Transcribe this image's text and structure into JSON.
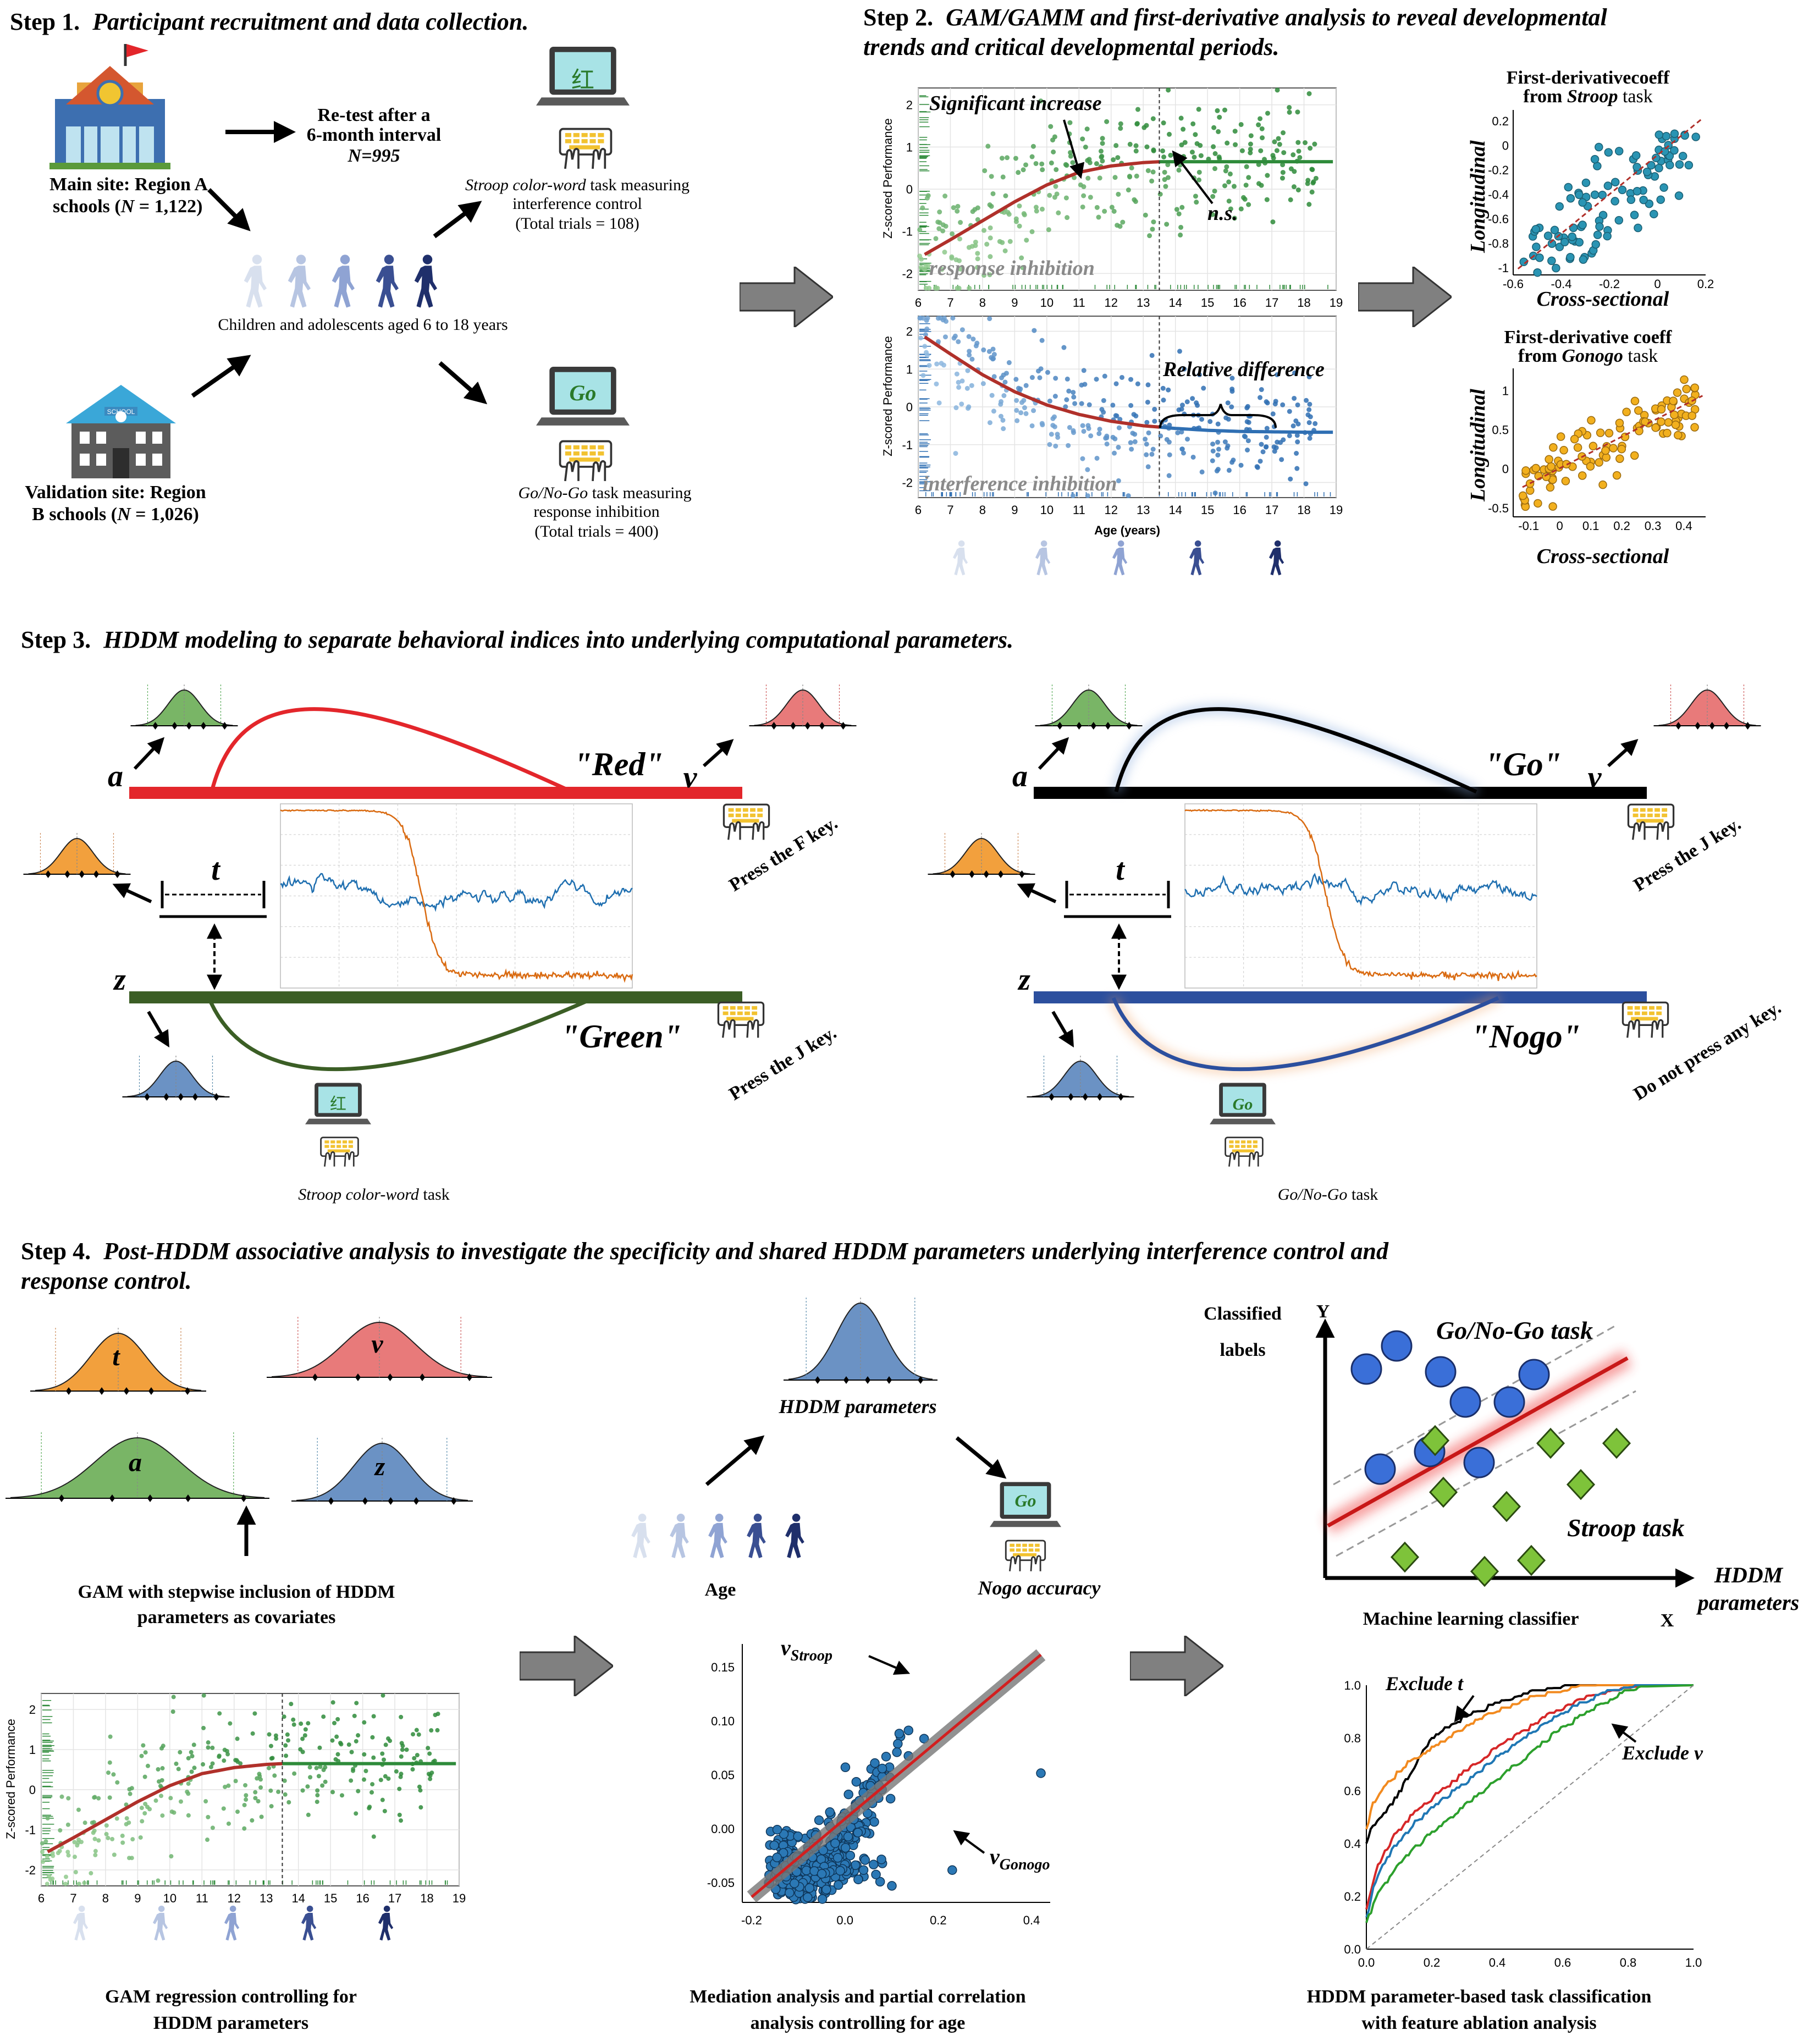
{
  "colors": {
    "green": "#2e8b3a",
    "light_green": "#9fd39a",
    "blue": "#2f6fb3",
    "light_blue": "#9cc3e6",
    "red": "#e3262b",
    "dark_red": "#b0302a",
    "orange": "#f2a03d",
    "olive": "#3b5e25",
    "navy": "#2c4f9e",
    "teal": "#2a94b3",
    "gold": "#f2b01e",
    "lime": "#7ec33a",
    "arrow_gray": "#808080"
  },
  "icons": [
    "school-icon",
    "flag-icon",
    "walker-icon",
    "laptop-icon",
    "keyboard-hand-icon",
    "gray-block-arrow-icon"
  ],
  "step1": {
    "num": "Step 1.",
    "title": "Participant recruitment and data collection.",
    "main_site_1": "Main site: Region A",
    "main_site_2_pre": "schools (",
    "main_site_n_sym": "N",
    "main_site_2_post": " = 1,122)",
    "retest_1": "Re-test after a",
    "retest_2": "6-month interval",
    "retest_n": "N=995",
    "stroop_name": "Stroop color-word",
    "stroop_rest": " task measuring",
    "stroop_2": "interference control",
    "stroop_3": "(Total trials = 108)",
    "children": "Children and adolescents aged 6 to 18 years",
    "valid_1": "Validation site: Region",
    "valid_2_pre": "B schools (",
    "valid_n_sym": "N",
    "valid_2_post": " = 1,026)",
    "gonogo_name": "Go/No-Go",
    "gonogo_rest": " task measuring",
    "gonogo_2": "response inhibition",
    "gonogo_3": "(Total trials = 400)",
    "school_sign": "SCHOOL",
    "hong_char": "红",
    "go_word": "Go"
  },
  "step2": {
    "num": "Step 2.",
    "title_1": "GAM/GAMM and first-derivative analysis to reveal developmental",
    "title_2": "trends and critical developmental periods.",
    "ylabel": "Z-scored Performance",
    "xlabel": "Age (years)",
    "sig_increase": "Significant increase",
    "ns": "n.s.",
    "resp_inh": "response inhibition",
    "rel_diff": "Relative difference",
    "interf_inh": "interference inhibition",
    "scatter1_title_1": "First-derivativecoeff",
    "scatter1_title_2_pre": "from ",
    "scatter1_title_2_em": "Stroop",
    "scatter1_title_2_post": " task",
    "scatter2_title_1": "First-derivative coeff",
    "scatter2_title_2_pre": "from ",
    "scatter2_title_2_em": "Gonogo",
    "scatter2_title_2_post": " task",
    "longitudinal": "Longitudinal",
    "cross_sectional": "Cross-sectional"
  },
  "step3": {
    "num": "Step 3.",
    "title": "HDDM modeling to separate behavioral indices into underlying computational parameters.",
    "red_word": "\"Red\"",
    "green_word": "\"Green\"",
    "go_word": "\"Go\"",
    "nogo_word": "\"Nogo\"",
    "a": "a",
    "v": "v",
    "t": "t",
    "z": "z",
    "press_f": "Press the F key.",
    "press_j": "Press the J key.",
    "press_j2": "Press the J key.",
    "no_press": "Do not press any key.",
    "stroop_cap_em": "Stroop color-word",
    "stroop_cap_rest": " task",
    "gonogo_cap_em": "Go/No-Go",
    "gonogo_cap_rest": " task"
  },
  "step4": {
    "num": "Step 4.",
    "title_1": "Post-HDDM associative analysis to investigate the specificity and shared HDDM parameters underlying interference control and",
    "title_2": "response control.",
    "t": "t",
    "v": "v",
    "a": "a",
    "z": "z",
    "gam_cov_1": "GAM with stepwise inclusion of HDDM",
    "gam_cov_2": "parameters as covariates",
    "hddm_params": "HDDM  parameters",
    "age": "Age",
    "nogo_acc": "Nogo accuracy",
    "v_stroop_main": "v",
    "v_stroop_sub": "Stroop",
    "v_gonogo_main": "v",
    "v_gonogo_sub": "Gonogo",
    "classified_1": "Classified",
    "classified_2": "labels",
    "y_axis": "Y",
    "x_axis": "X",
    "gonogo_task": "Go/No-Go task",
    "stroop_task": "Stroop task",
    "ml_classifier": "Machine learning classifier",
    "hddm_p_1": "HDDM",
    "hddm_p_2": "parameters",
    "exclude_t": "Exclude t",
    "exclude_v": "Exclude v",
    "gam_reg_1": "GAM regression controlling for",
    "gam_reg_2": "HDDM parameters",
    "mediation_1": "Mediation analysis and partial correlation",
    "mediation_2": "analysis controlling for age",
    "class_1": "HDDM parameter-based task classification",
    "class_2": "with feature ablation analysis"
  },
  "chart_data": [
    {
      "type": "scatter",
      "title": "",
      "panel": "response inhibition",
      "xlabel": "",
      "ylabel": "Z-scored Performance",
      "x_ticks": [
        "6",
        "7",
        "8",
        "9",
        "10",
        "11",
        "12",
        "13",
        "14",
        "15",
        "16",
        "17",
        "18",
        "19"
      ],
      "y_ticks": [
        "2",
        "1",
        "0",
        "-1",
        "-2"
      ],
      "xlim": [
        6,
        19
      ],
      "ylim": [
        -2.4,
        2.4
      ],
      "fit_curve": {
        "x": [
          6.2,
          7,
          8,
          9,
          10,
          11,
          12,
          13,
          13.5,
          19
        ],
        "y": [
          -1.55,
          -1.2,
          -0.75,
          -0.3,
          0.1,
          0.4,
          0.55,
          0.63,
          0.65,
          0.65
        ]
      },
      "vline_x": 13.5
    },
    {
      "type": "scatter",
      "title": "",
      "panel": "interference inhibition",
      "xlabel": "Age (years)",
      "ylabel": "Z-scored Performance",
      "x_ticks": [
        "6",
        "7",
        "8",
        "9",
        "10",
        "11",
        "12",
        "13",
        "14",
        "15",
        "16",
        "17",
        "18",
        "19"
      ],
      "y_ticks": [
        "2",
        "1",
        "0",
        "-1",
        "-2"
      ],
      "xlim": [
        6,
        19
      ],
      "ylim": [
        -2.4,
        2.4
      ],
      "fit_curve": {
        "x": [
          6.2,
          7,
          8,
          9,
          10,
          11,
          12,
          13,
          14,
          15,
          16,
          17,
          18,
          19
        ],
        "y": [
          1.85,
          1.4,
          0.85,
          0.4,
          0.05,
          -0.2,
          -0.38,
          -0.5,
          -0.57,
          -0.62,
          -0.65,
          -0.66,
          -0.67,
          -0.67
        ]
      },
      "vline_x": 13.5
    },
    {
      "type": "scatter",
      "title": "First-derivativecoeff from Stroop task",
      "xlabel": "Cross-sectional",
      "ylabel": "Longitudinal",
      "x_ticks": [
        "-0.6",
        "-0.4",
        "-0.2",
        "0",
        "0.2"
      ],
      "y_ticks": [
        "0.2",
        "0",
        "-0.2",
        "-0.4",
        "-0.6",
        "-0.8",
        "-1"
      ],
      "xlim": [
        -0.6,
        0.2
      ],
      "ylim": [
        -1.05,
        0.3
      ],
      "trend": {
        "x": [
          -0.58,
          0.18
        ],
        "y": [
          -1.0,
          0.22
        ]
      }
    },
    {
      "type": "scatter",
      "title": "First-derivative coeff from Gonogo task",
      "xlabel": "Cross-sectional",
      "ylabel": "Longitudinal",
      "x_ticks": [
        "-0.1",
        "0",
        "0.1",
        "0.2",
        "0.3",
        "0.4"
      ],
      "y_ticks": [
        "1",
        "0.5",
        "0",
        "-0.5"
      ],
      "xlim": [
        -0.15,
        0.47
      ],
      "ylim": [
        -0.6,
        1.3
      ],
      "trend": {
        "x": [
          -0.12,
          0.46
        ],
        "y": [
          -0.22,
          0.95
        ]
      }
    },
    {
      "type": "scatter",
      "title": "",
      "panel": "Mediation analysis and partial correlation",
      "xlabel": "",
      "ylabel": "",
      "x_ticks": [
        "-0.2",
        "0.0",
        "0.2",
        "0.4"
      ],
      "y_ticks": [
        "0.15",
        "0.10",
        "0.05",
        "0.00",
        "-0.05"
      ],
      "xlim": [
        -0.22,
        0.44
      ],
      "ylim": [
        -0.07,
        0.17
      ],
      "trend": {
        "x": [
          -0.2,
          0.42
        ],
        "y": [
          -0.065,
          0.16
        ]
      },
      "outliers": [
        {
          "x": 0.42,
          "y": 0.05
        },
        {
          "x": 0.23,
          "y": -0.04
        }
      ]
    },
    {
      "type": "line",
      "title": "",
      "panel": "HDDM parameter-based task classification",
      "xlabel": "",
      "ylabel": "",
      "x_ticks": [
        "0.0",
        "0.2",
        "0.4",
        "0.6",
        "0.8",
        "1.0"
      ],
      "y_ticks": [
        "1.0",
        "0.8",
        "0.6",
        "0.4",
        "0.2",
        "0.0"
      ],
      "xlim": [
        0,
        1
      ],
      "ylim": [
        0,
        1
      ],
      "series": [
        {
          "color": "#000000",
          "x": [
            0,
            0.02,
            0.08,
            0.15,
            0.2,
            0.3,
            0.4,
            0.5,
            0.6,
            0.7,
            0.8
          ],
          "y": [
            0.4,
            0.47,
            0.55,
            0.7,
            0.8,
            0.88,
            0.93,
            0.97,
            0.99,
            1.0,
            1.0
          ]
        },
        {
          "color": "#f28a1f",
          "x": [
            0,
            0.02,
            0.06,
            0.12,
            0.2,
            0.3,
            0.4,
            0.5,
            0.6,
            0.7,
            0.8
          ],
          "y": [
            0.45,
            0.55,
            0.62,
            0.7,
            0.76,
            0.84,
            0.9,
            0.95,
            0.98,
            1.0,
            1.0
          ]
        },
        {
          "color": "#d62728",
          "x": [
            0,
            0.03,
            0.08,
            0.15,
            0.25,
            0.35,
            0.45,
            0.55,
            0.65,
            0.75,
            0.85
          ],
          "y": [
            0.15,
            0.3,
            0.42,
            0.52,
            0.62,
            0.72,
            0.8,
            0.88,
            0.94,
            0.98,
            1.0
          ]
        },
        {
          "color": "#1f77b4",
          "x": [
            0,
            0.03,
            0.08,
            0.15,
            0.25,
            0.35,
            0.45,
            0.55,
            0.65,
            0.75,
            0.85
          ],
          "y": [
            0.12,
            0.27,
            0.38,
            0.48,
            0.58,
            0.68,
            0.77,
            0.86,
            0.93,
            0.98,
            1.0
          ]
        },
        {
          "color": "#2ca02c",
          "x": [
            0,
            0.04,
            0.1,
            0.18,
            0.28,
            0.38,
            0.48,
            0.58,
            0.68,
            0.78,
            0.86
          ],
          "y": [
            0.1,
            0.22,
            0.32,
            0.42,
            0.52,
            0.62,
            0.72,
            0.82,
            0.9,
            0.97,
            1.0
          ]
        },
        {
          "color": "#999999",
          "x": [
            0,
            1
          ],
          "y": [
            0,
            1
          ]
        }
      ]
    }
  ]
}
